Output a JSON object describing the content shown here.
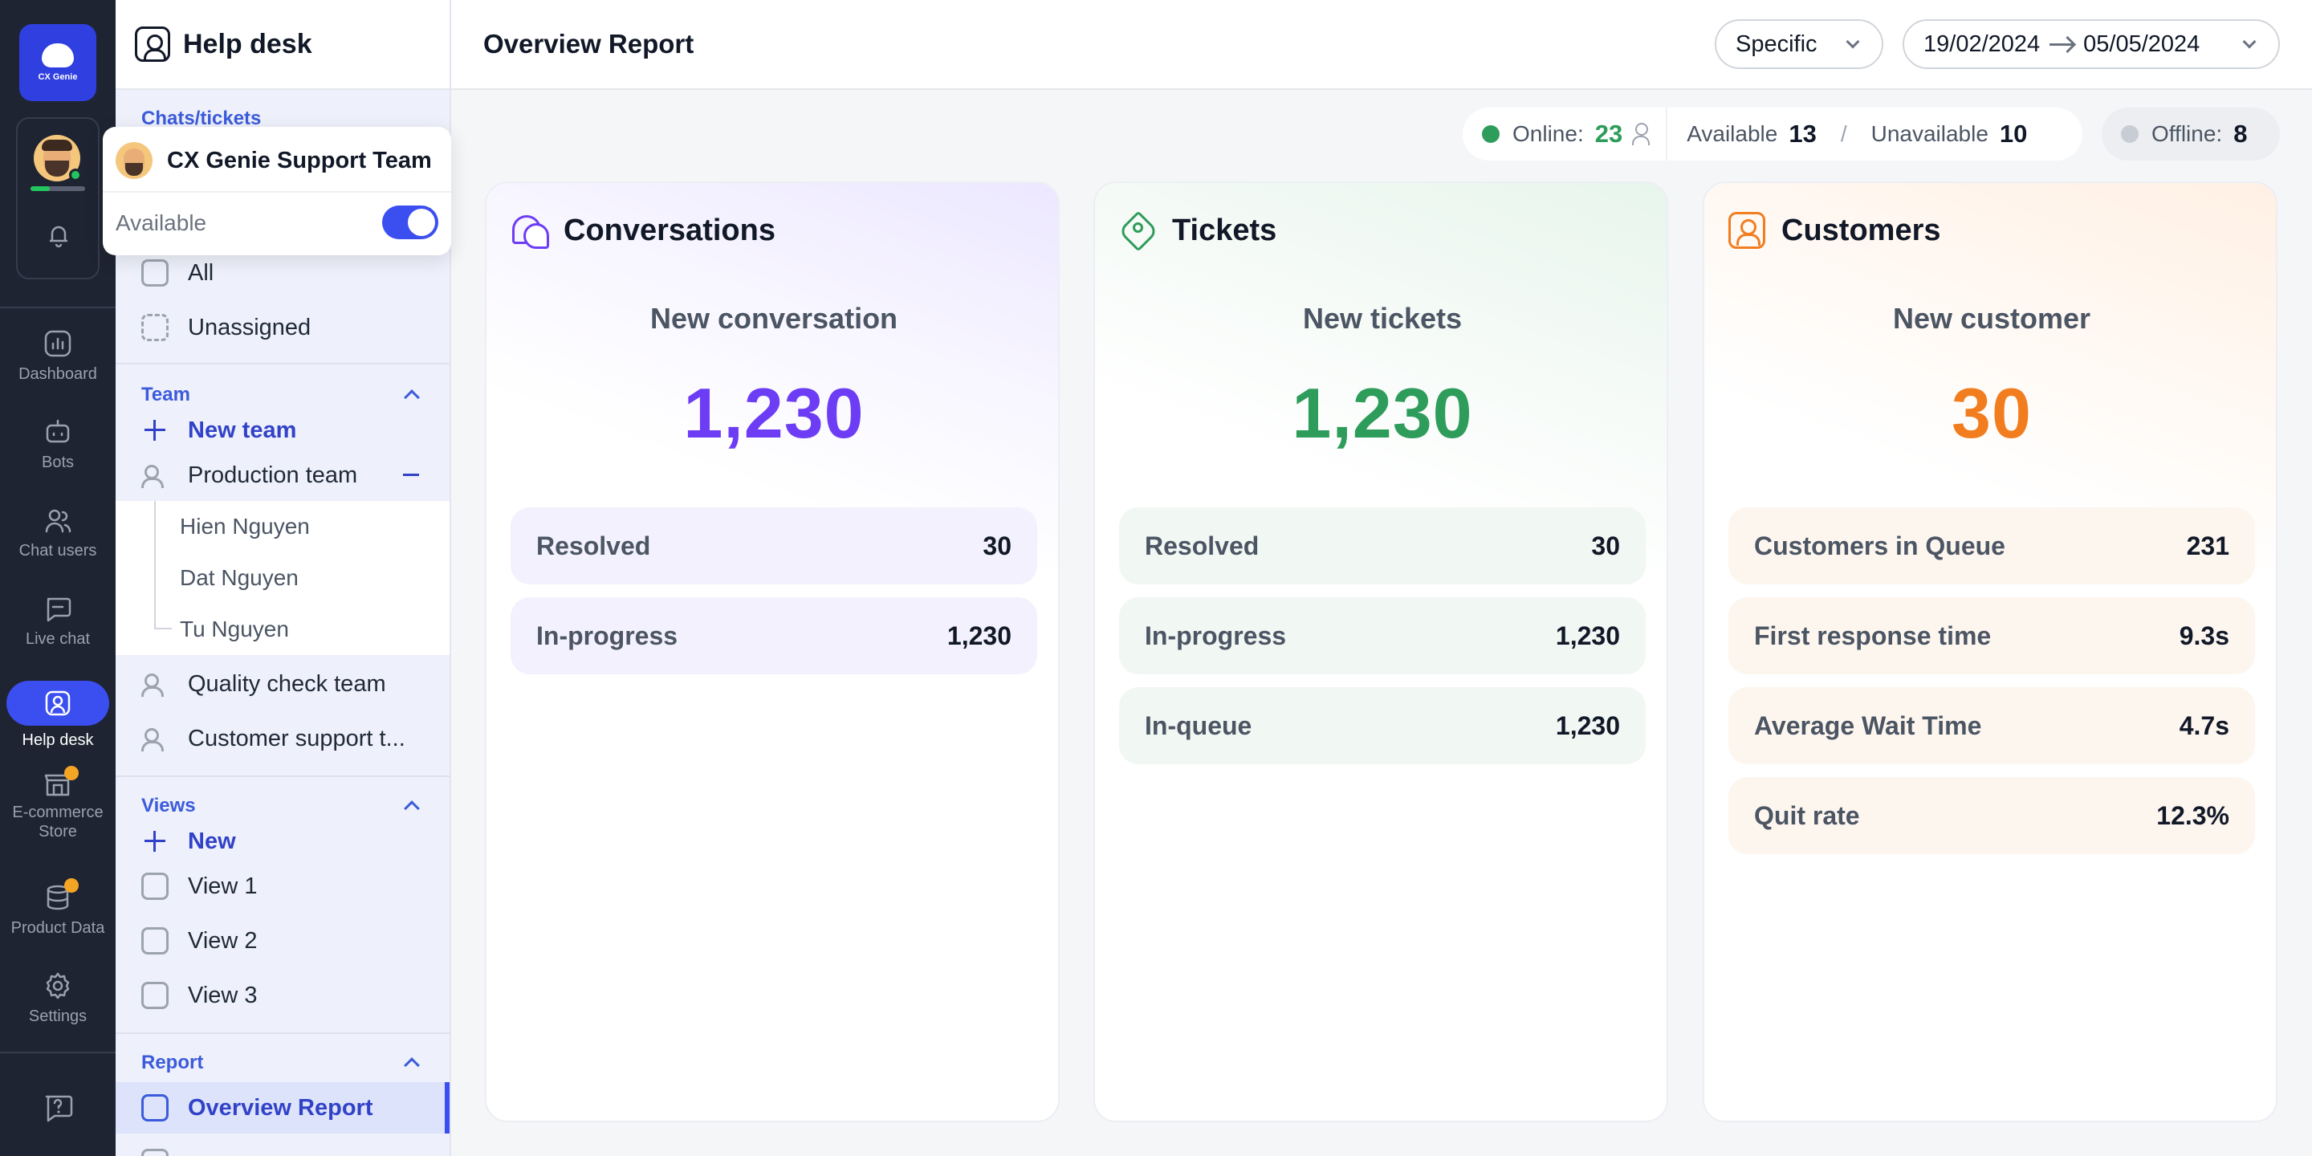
{
  "rail": {
    "logo_text": "CX Genie",
    "items": [
      {
        "label": "Dashboard"
      },
      {
        "label": "Bots"
      },
      {
        "label": "Chat users"
      },
      {
        "label": "Live chat"
      },
      {
        "label": "Help desk"
      },
      {
        "label": "E-commerce Store"
      },
      {
        "label": "Product Data"
      },
      {
        "label": "Settings"
      }
    ]
  },
  "sidebar": {
    "title": "Help desk",
    "section_chats": "Chats/tickets",
    "chats": [
      {
        "label": "All"
      },
      {
        "label": "Unassigned"
      }
    ],
    "section_team": "Team",
    "new_team": "New team",
    "teams": [
      {
        "label": "Production team",
        "members": [
          "Hien Nguyen",
          "Dat Nguyen",
          "Tu Nguyen"
        ]
      },
      {
        "label": "Quality check team"
      },
      {
        "label": "Customer support t..."
      }
    ],
    "section_views": "Views",
    "new_view": "New",
    "views": [
      {
        "label": "View 1"
      },
      {
        "label": "View 2"
      },
      {
        "label": "View 3"
      }
    ],
    "section_report": "Report",
    "reports": [
      {
        "label": "Overview Report"
      }
    ]
  },
  "popup": {
    "team_name": "CX Genie Support Team",
    "status_label": "Available",
    "status_on": true
  },
  "topbar": {
    "title": "Overview Report",
    "range_mode": "Specific",
    "date_from": "19/02/2024",
    "date_to": "05/05/2024"
  },
  "status": {
    "online_label": "Online:",
    "online_count": "23",
    "available_label": "Available",
    "available_count": "13",
    "divider": "/",
    "unavailable_label": "Unavailable",
    "unavailable_count": "10",
    "offline_label": "Offline:",
    "offline_count": "8"
  },
  "cards": [
    {
      "title": "Conversations",
      "subtitle": "New conversation",
      "value": "1,230",
      "stats": [
        {
          "label": "Resolved",
          "value": "30"
        },
        {
          "label": "In-progress",
          "value": "1,230"
        }
      ]
    },
    {
      "title": "Tickets",
      "subtitle": "New tickets",
      "value": "1,230",
      "stats": [
        {
          "label": "Resolved",
          "value": "30"
        },
        {
          "label": "In-progress",
          "value": "1,230"
        },
        {
          "label": "In-queue",
          "value": "1,230"
        }
      ]
    },
    {
      "title": "Customers",
      "subtitle": "New customer",
      "value": "30",
      "stats": [
        {
          "label": "Customers in Queue",
          "value": "231"
        },
        {
          "label": "First response time",
          "value": "9.3s"
        },
        {
          "label": "Average Wait Time",
          "value": "4.7s"
        },
        {
          "label": "Quit rate",
          "value": "12.3%"
        }
      ]
    }
  ],
  "colors": {
    "accent": "#3b4ef0",
    "online": "#2e9c5a",
    "offline": "#c8ccd4",
    "conversations": "#6d3df5",
    "tickets": "#2e9c5a",
    "customers": "#f27d1f"
  }
}
